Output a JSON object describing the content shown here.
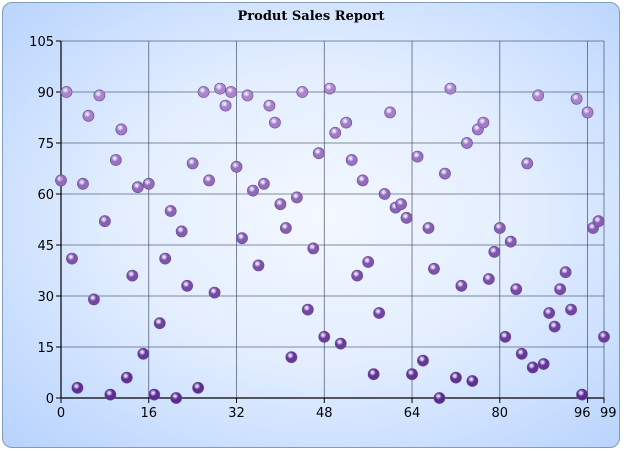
{
  "chart_data": {
    "type": "scatter",
    "title": "Produt Sales Report",
    "xlabel": "",
    "ylabel": "",
    "xlim": [
      0,
      99
    ],
    "ylim": [
      0,
      105
    ],
    "x_ticks": [
      0,
      16,
      32,
      48,
      64,
      80,
      96,
      99
    ],
    "x_tick_labels": [
      "0",
      "16",
      "32",
      "48",
      "64",
      "80",
      "96",
      "99"
    ],
    "y_ticks": [
      0,
      15,
      30,
      45,
      60,
      75,
      90,
      105
    ],
    "y_tick_labels": [
      "0",
      "15",
      "30",
      "45",
      "60",
      "75",
      "90",
      "105"
    ],
    "grid": true,
    "legend": "none",
    "marker_colors": {
      "low": "#5b2a91",
      "high": "#b794d8",
      "edge": "#6b4c97"
    },
    "series": [
      {
        "points": [
          [
            0,
            64
          ],
          [
            1,
            90
          ],
          [
            2,
            41
          ],
          [
            3,
            3
          ],
          [
            4,
            63
          ],
          [
            5,
            83
          ],
          [
            6,
            29
          ],
          [
            7,
            89
          ],
          [
            8,
            52
          ],
          [
            9,
            1
          ],
          [
            10,
            70
          ],
          [
            11,
            79
          ],
          [
            12,
            6
          ],
          [
            13,
            36
          ],
          [
            14,
            62
          ],
          [
            15,
            13
          ],
          [
            16,
            63
          ],
          [
            17,
            1
          ],
          [
            18,
            22
          ],
          [
            19,
            41
          ],
          [
            20,
            55
          ],
          [
            21,
            0
          ],
          [
            22,
            49
          ],
          [
            23,
            33
          ],
          [
            24,
            69
          ],
          [
            25,
            3
          ],
          [
            26,
            90
          ],
          [
            27,
            64
          ],
          [
            28,
            31
          ],
          [
            29,
            91
          ],
          [
            30,
            86
          ],
          [
            31,
            90
          ],
          [
            32,
            68
          ],
          [
            33,
            47
          ],
          [
            34,
            89
          ],
          [
            35,
            61
          ],
          [
            36,
            39
          ],
          [
            37,
            63
          ],
          [
            38,
            86
          ],
          [
            39,
            81
          ],
          [
            40,
            57
          ],
          [
            41,
            50
          ],
          [
            42,
            12
          ],
          [
            43,
            59
          ],
          [
            44,
            90
          ],
          [
            45,
            26
          ],
          [
            46,
            44
          ],
          [
            47,
            72
          ],
          [
            48,
            18
          ],
          [
            49,
            91
          ],
          [
            50,
            78
          ],
          [
            51,
            16
          ],
          [
            52,
            81
          ],
          [
            53,
            70
          ],
          [
            54,
            36
          ],
          [
            55,
            64
          ],
          [
            56,
            40
          ],
          [
            57,
            7
          ],
          [
            58,
            25
          ],
          [
            59,
            60
          ],
          [
            60,
            84
          ],
          [
            61,
            56
          ],
          [
            62,
            57
          ],
          [
            63,
            53
          ],
          [
            64,
            7
          ],
          [
            65,
            71
          ],
          [
            66,
            11
          ],
          [
            67,
            50
          ],
          [
            68,
            38
          ],
          [
            69,
            0
          ],
          [
            70,
            66
          ],
          [
            71,
            91
          ],
          [
            72,
            6
          ],
          [
            73,
            33
          ],
          [
            74,
            75
          ],
          [
            75,
            5
          ],
          [
            76,
            79
          ],
          [
            77,
            81
          ],
          [
            78,
            35
          ],
          [
            79,
            43
          ],
          [
            80,
            50
          ],
          [
            81,
            18
          ],
          [
            82,
            46
          ],
          [
            83,
            32
          ],
          [
            84,
            13
          ],
          [
            85,
            69
          ],
          [
            86,
            9
          ],
          [
            87,
            89
          ],
          [
            88,
            10
          ],
          [
            89,
            25
          ],
          [
            90,
            21
          ],
          [
            91,
            32
          ],
          [
            92,
            37
          ],
          [
            93,
            26
          ],
          [
            94,
            88
          ],
          [
            95,
            1
          ],
          [
            96,
            84
          ],
          [
            97,
            50
          ],
          [
            98,
            52
          ],
          [
            99,
            18
          ]
        ]
      }
    ]
  }
}
